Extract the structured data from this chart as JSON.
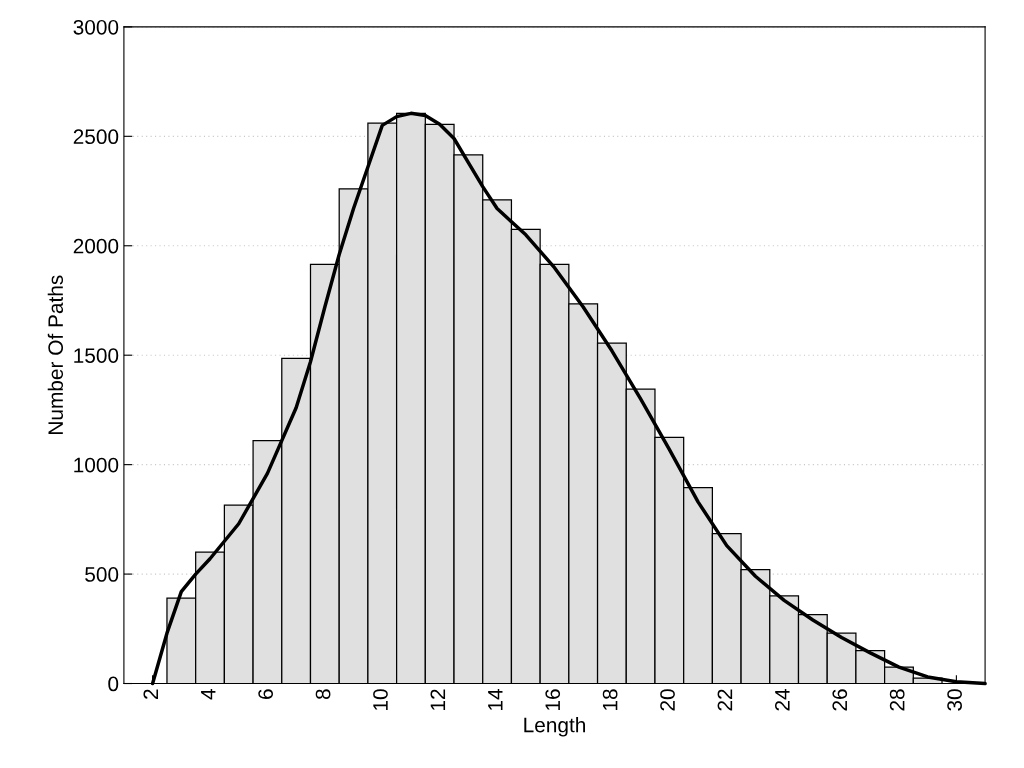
{
  "chart_data": {
    "type": "histogram",
    "xlabel": "Length",
    "ylabel": "Number Of Paths",
    "bins": [
      2.5,
      3.5,
      4.5,
      5.5,
      6.5,
      7.5,
      8.5,
      9.5,
      10.5,
      11.5,
      12.5,
      13.5,
      14.5,
      15.5,
      16.5,
      17.5,
      18.5,
      19.5,
      20.5,
      21.5,
      22.5,
      23.5,
      24.5,
      25.5,
      26.5,
      27.5,
      28.5,
      29.5
    ],
    "values": [
      390,
      600,
      815,
      1110,
      1485,
      1915,
      2260,
      2560,
      2605,
      2555,
      2415,
      2210,
      2075,
      1915,
      1735,
      1555,
      1345,
      1125,
      895,
      685,
      520,
      400,
      315,
      230,
      150,
      75,
      25
    ],
    "color": "#e0e0e0",
    "series": [
      {
        "type": "line",
        "color": "#000000",
        "x": [
          2,
          2.5,
          3,
          3.5,
          4,
          5,
          6,
          7,
          7.5,
          8,
          8.5,
          9,
          9.5,
          10,
          10.5,
          11,
          11.5,
          12,
          12.5,
          13,
          13.5,
          14,
          15,
          16,
          17,
          18,
          19,
          20,
          21,
          22,
          23,
          24,
          25,
          26,
          27,
          28,
          29,
          30,
          31
        ],
        "values": [
          0,
          230,
          420,
          500,
          570,
          730,
          960,
          1260,
          1470,
          1720,
          1960,
          2170,
          2360,
          2550,
          2590,
          2605,
          2595,
          2555,
          2490,
          2380,
          2270,
          2170,
          2050,
          1900,
          1720,
          1520,
          1300,
          1070,
          830,
          630,
          490,
          380,
          290,
          210,
          140,
          75,
          30,
          8,
          0
        ]
      }
    ],
    "xlim": [
      1,
      31
    ],
    "xticks": [
      2,
      4,
      6,
      8,
      10,
      12,
      14,
      16,
      18,
      20,
      22,
      24,
      26,
      28,
      30
    ],
    "ylim": [
      0,
      3000
    ],
    "yticks": [
      0,
      500,
      1000,
      1500,
      2000,
      2500,
      3000
    ],
    "grid": "y",
    "legend": false
  }
}
